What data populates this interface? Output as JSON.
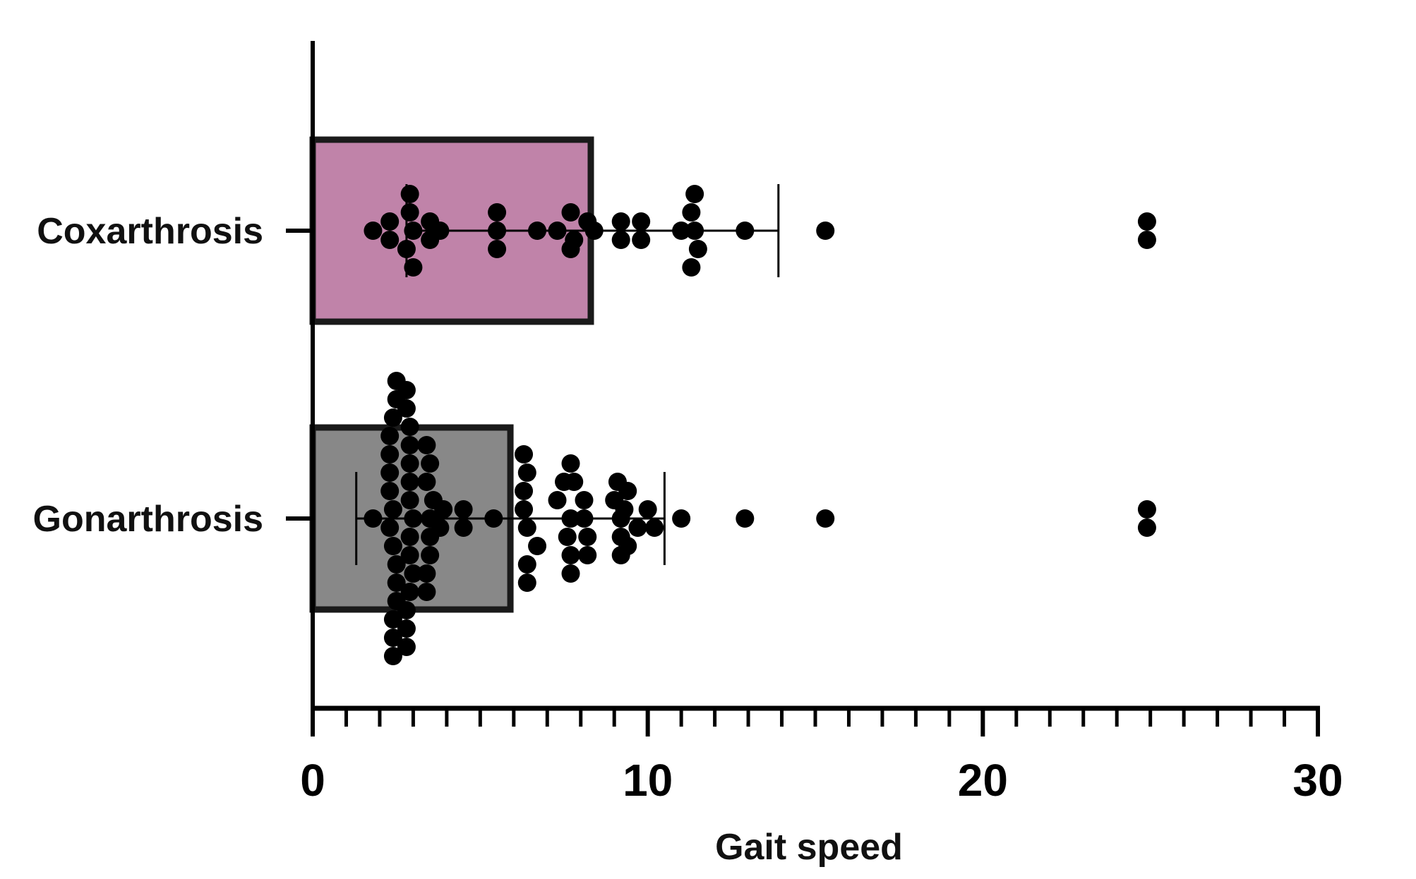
{
  "chart_data": {
    "type": "bar",
    "orientation": "horizontal",
    "title": "",
    "xlabel": "Gait speed",
    "ylabel": "",
    "xlim": [
      0,
      30
    ],
    "x_ticks": [
      0,
      10,
      20,
      30
    ],
    "x_tick_labels": [
      "0",
      "10",
      "20",
      "30"
    ],
    "minor_tick_step": 1,
    "grid": false,
    "legend": "none",
    "categories": [
      "Coxarthrosis",
      "Gonarthrosis"
    ],
    "values": [
      8.3,
      5.9
    ],
    "error_bars": [
      {
        "low": 2.8,
        "high": 13.9
      },
      {
        "low": 1.3,
        "high": 10.5
      }
    ],
    "colors": {
      "Coxarthrosis": "#c083a9",
      "Gonarthrosis": "#888888",
      "bar_edge": "#1a1a1a",
      "points": "#000000"
    },
    "points": {
      "Coxarthrosis": [
        {
          "x": 2.9,
          "s": 0.0
        },
        {
          "x": 11.0,
          "s": 0.0
        },
        {
          "x": 2.9,
          "s": 0.0
        },
        {
          "x": 3.5,
          "s": 0.0
        },
        {
          "x": 11.4,
          "s": 0.0
        },
        {
          "x": 5.5,
          "s": 0.0
        },
        {
          "x": 2.3,
          "s": 0.0
        },
        {
          "x": 2.3,
          "s": 0.0
        },
        {
          "x": 3.0,
          "s": 0.0
        },
        {
          "x": 3.8,
          "s": 0.0
        },
        {
          "x": 7.7,
          "s": 0.0
        },
        {
          "x": 9.2,
          "s": 0.0
        },
        {
          "x": 9.8,
          "s": 0.0
        },
        {
          "x": 11.3,
          "s": 0.0
        },
        {
          "x": 24.9,
          "s": 0.0
        },
        {
          "x": 5.5,
          "s": 0.0
        },
        {
          "x": 6.7,
          "s": 0.0
        },
        {
          "x": 12.9,
          "s": 0.0
        },
        {
          "x": 15.3,
          "s": 0.0
        },
        {
          "x": 1.8,
          "s": 0.0
        },
        {
          "x": 2.8,
          "s": 0.0
        },
        {
          "x": 7.3,
          "s": 0.0
        },
        {
          "x": 8.2,
          "s": 0.0
        },
        {
          "x": 9.2,
          "s": 0.0
        },
        {
          "x": 9.8,
          "s": 0.0
        },
        {
          "x": 11.4,
          "s": 0.0
        },
        {
          "x": 24.9,
          "s": 0.0
        },
        {
          "x": 5.5,
          "s": 0.0
        },
        {
          "x": 7.8,
          "s": 0.0
        },
        {
          "x": 3.5,
          "s": 0.0
        },
        {
          "x": 7.7,
          "s": 0.0
        },
        {
          "x": 8.4,
          "s": 0.0
        },
        {
          "x": 11.5,
          "s": 0.0
        },
        {
          "x": 3.0,
          "s": 0.0
        },
        {
          "x": 11.3,
          "s": 0.0
        }
      ],
      "Gonarthrosis": [
        {
          "x": 2.5,
          "s": 0.0
        },
        {
          "x": 2.8,
          "s": 0.0
        },
        {
          "x": 2.5,
          "s": 0.0
        },
        {
          "x": 2.8,
          "s": 0.0
        },
        {
          "x": 2.4,
          "s": 0.0
        },
        {
          "x": 2.9,
          "s": 0.0
        },
        {
          "x": 2.3,
          "s": 0.0
        },
        {
          "x": 2.9,
          "s": 0.0
        },
        {
          "x": 3.4,
          "s": 0.0
        },
        {
          "x": 2.3,
          "s": 0.0
        },
        {
          "x": 2.9,
          "s": 0.0
        },
        {
          "x": 3.5,
          "s": 0.0
        },
        {
          "x": 6.3,
          "s": 0.0
        },
        {
          "x": 7.7,
          "s": 0.0
        },
        {
          "x": 9.1,
          "s": 0.0
        },
        {
          "x": 2.3,
          "s": 0.0
        },
        {
          "x": 2.9,
          "s": 0.0
        },
        {
          "x": 3.4,
          "s": 0.0
        },
        {
          "x": 6.4,
          "s": 0.0
        },
        {
          "x": 7.8,
          "s": 0.0
        },
        {
          "x": 9.4,
          "s": 0.0
        },
        {
          "x": 2.3,
          "s": 0.0
        },
        {
          "x": 2.9,
          "s": 0.0
        },
        {
          "x": 3.6,
          "s": 0.0
        },
        {
          "x": 3.9,
          "s": 0.0
        },
        {
          "x": 6.3,
          "s": 0.0
        },
        {
          "x": 7.5,
          "s": 0.0
        },
        {
          "x": 8.1,
          "s": 0.0
        },
        {
          "x": 9.0,
          "s": 0.0
        },
        {
          "x": 2.4,
          "s": 0.0
        },
        {
          "x": 3.0,
          "s": 0.0
        },
        {
          "x": 3.5,
          "s": 0.0
        },
        {
          "x": 4.5,
          "s": 0.0
        },
        {
          "x": 6.3,
          "s": 0.0
        },
        {
          "x": 7.3,
          "s": 0.0
        },
        {
          "x": 8.1,
          "s": 0.0
        },
        {
          "x": 9.3,
          "s": 0.0
        },
        {
          "x": 9.7,
          "s": 0.0
        },
        {
          "x": 2.3,
          "s": 0.0
        },
        {
          "x": 2.9,
          "s": 0.0
        },
        {
          "x": 3.5,
          "s": 0.0
        },
        {
          "x": 5.4,
          "s": 0.0
        },
        {
          "x": 6.4,
          "s": 0.0
        },
        {
          "x": 7.7,
          "s": 0.0
        },
        {
          "x": 8.2,
          "s": 0.0
        },
        {
          "x": 9.2,
          "s": 0.0
        },
        {
          "x": 10.0,
          "s": 0.0
        },
        {
          "x": 11.0,
          "s": 0.0
        },
        {
          "x": 12.9,
          "s": 0.0
        },
        {
          "x": 15.3,
          "s": 0.0
        },
        {
          "x": 24.9,
          "s": 0.0
        },
        {
          "x": 2.4,
          "s": 0.0
        },
        {
          "x": 2.9,
          "s": 0.0
        },
        {
          "x": 3.5,
          "s": 0.0
        },
        {
          "x": 4.5,
          "s": 0.0
        },
        {
          "x": 6.7,
          "s": 0.0
        },
        {
          "x": 7.6,
          "s": 0.0
        },
        {
          "x": 8.2,
          "s": 0.0
        },
        {
          "x": 9.2,
          "s": 0.0
        },
        {
          "x": 10.2,
          "s": 0.0
        },
        {
          "x": 24.9,
          "s": 0.0
        },
        {
          "x": 1.8,
          "s": 0.0
        },
        {
          "x": 2.5,
          "s": 0.0
        },
        {
          "x": 3.0,
          "s": 0.0
        },
        {
          "x": 3.8,
          "s": 0.0
        },
        {
          "x": 6.4,
          "s": 0.0
        },
        {
          "x": 7.7,
          "s": 0.0
        },
        {
          "x": 9.4,
          "s": 0.0
        },
        {
          "x": 2.5,
          "s": 0.0
        },
        {
          "x": 2.9,
          "s": 0.0
        },
        {
          "x": 3.4,
          "s": 0.0
        },
        {
          "x": 6.4,
          "s": 0.0
        },
        {
          "x": 7.7,
          "s": 0.0
        },
        {
          "x": 9.2,
          "s": 0.0
        },
        {
          "x": 2.5,
          "s": 0.0
        },
        {
          "x": 3.4,
          "s": 0.0
        },
        {
          "x": 2.4,
          "s": 0.0
        },
        {
          "x": 2.8,
          "s": 0.0
        },
        {
          "x": 2.4,
          "s": 0.0
        },
        {
          "x": 2.8,
          "s": 0.0
        },
        {
          "x": 2.4,
          "s": 0.0
        },
        {
          "x": 2.8,
          "s": 0.0
        }
      ]
    }
  }
}
